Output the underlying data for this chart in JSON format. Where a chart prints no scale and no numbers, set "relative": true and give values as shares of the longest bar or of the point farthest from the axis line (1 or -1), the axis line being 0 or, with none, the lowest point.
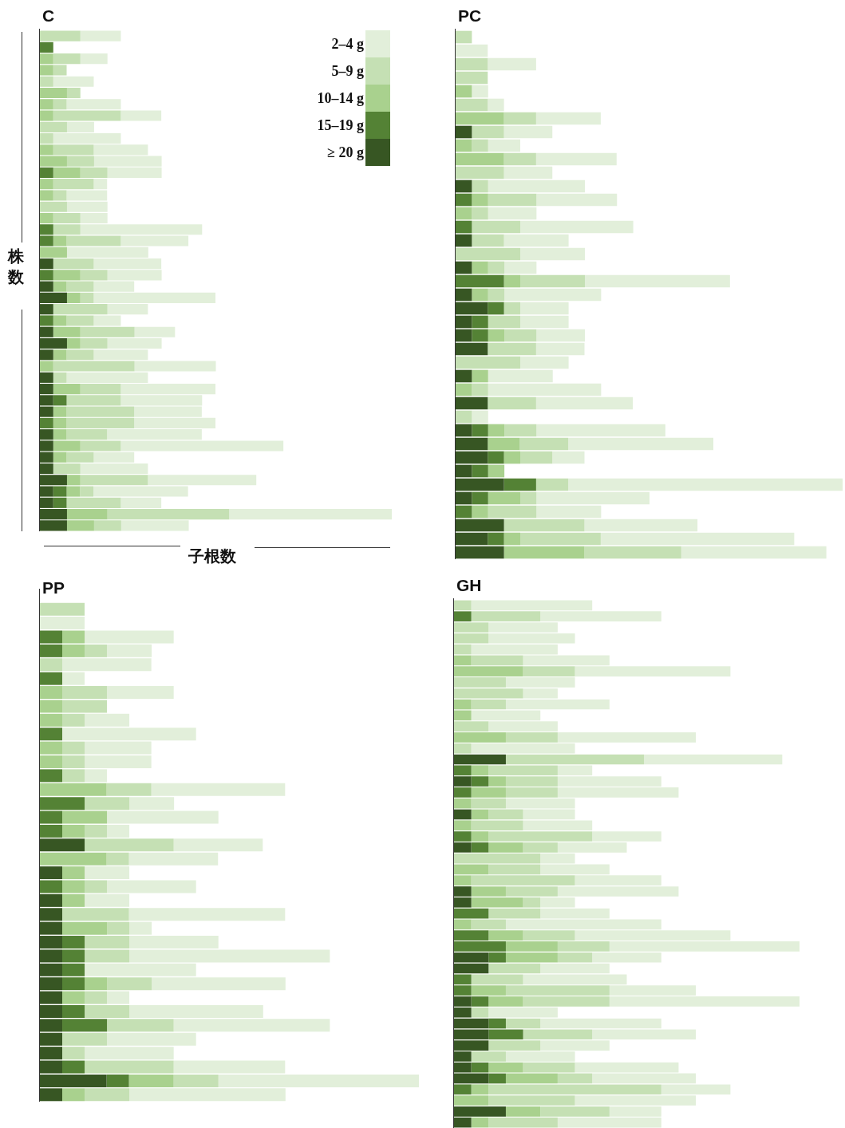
{
  "chart_data": [
    {
      "type": "bar",
      "orientation": "horizontal",
      "stacked": true,
      "relative": true,
      "tick_labels": false,
      "title": "C",
      "xlabel": "子根数",
      "ylabel": "株数",
      "legend": "top right",
      "categories": [
        null,
        null,
        null,
        null,
        null,
        null,
        null,
        null,
        null,
        null,
        null,
        null,
        null,
        null,
        null,
        null,
        null,
        null,
        null,
        null,
        null,
        null,
        null,
        null,
        null,
        null,
        null,
        null,
        null,
        null,
        null,
        null,
        null,
        null,
        null,
        null,
        null,
        null,
        null,
        null,
        null,
        null,
        null,
        null
      ],
      "series": [
        {
          "name": "≥ 20 g",
          "color": "#375623",
          "values": [
            0,
            0,
            0,
            0,
            0,
            0,
            0,
            0,
            0,
            0,
            0,
            0,
            0,
            0,
            0,
            0,
            0,
            0,
            0,
            0,
            0.038,
            0,
            0.038,
            0.077,
            0.038,
            0,
            0.038,
            0.077,
            0.038,
            0,
            0.038,
            0.038,
            0.038,
            0.038,
            0,
            0.038,
            0.038,
            0.038,
            0.038,
            0.077,
            0.038,
            0.038,
            0.077,
            0.077
          ]
        },
        {
          "name": "15–19 g",
          "color": "#548235",
          "values": [
            0,
            0.038,
            0,
            0,
            0,
            0,
            0,
            0,
            0,
            0,
            0,
            0,
            0.038,
            0,
            0,
            0,
            0,
            0.038,
            0.038,
            0,
            0,
            0.038,
            0,
            0,
            0,
            0.038,
            0,
            0,
            0,
            0,
            0,
            0,
            0.038,
            0,
            0.038,
            0,
            0,
            0,
            0,
            0,
            0.038,
            0.038,
            0,
            0
          ]
        },
        {
          "name": "10–14 g",
          "color": "#a9d18e",
          "values": [
            0,
            0,
            0.038,
            0.038,
            0,
            0.077,
            0.038,
            0.038,
            0,
            0,
            0.038,
            0.077,
            0.077,
            0.038,
            0.038,
            0,
            0.038,
            0,
            0.038,
            0.077,
            0,
            0.077,
            0.038,
            0.038,
            0,
            0.038,
            0.077,
            0.038,
            0.038,
            0.038,
            0,
            0.077,
            0,
            0.038,
            0.038,
            0.038,
            0.077,
            0.038,
            0,
            0.038,
            0.038,
            0,
            0.115,
            0.077
          ]
        },
        {
          "name": "5–9 g",
          "color": "#c5e0b4",
          "values": [
            0.115,
            0,
            0.077,
            0.038,
            0.038,
            0.038,
            0.038,
            0.192,
            0.077,
            0.038,
            0.115,
            0.077,
            0.077,
            0.115,
            0.038,
            0.077,
            0.077,
            0.077,
            0.154,
            0,
            0.115,
            0.077,
            0.077,
            0.038,
            0.154,
            0.077,
            0.154,
            0.077,
            0.077,
            0.231,
            0.038,
            0.115,
            0.154,
            0.192,
            0.192,
            0.115,
            0.115,
            0.077,
            0.077,
            0.192,
            0.038,
            0.154,
            0.346,
            0.077
          ]
        },
        {
          "name": "2–4 g",
          "color": "#e2efda",
          "values": [
            0.115,
            0,
            0.077,
            0,
            0.115,
            0,
            0.154,
            0.115,
            0.077,
            0.192,
            0.154,
            0.192,
            0.154,
            0.038,
            0.115,
            0.115,
            0.077,
            0.346,
            0.192,
            0.231,
            0.192,
            0.154,
            0.115,
            0.346,
            0.115,
            0.077,
            0.115,
            0.154,
            0.154,
            0.231,
            0.231,
            0.269,
            0.231,
            0.192,
            0.231,
            0.269,
            0.462,
            0.115,
            0.192,
            0.308,
            0.269,
            0.115,
            0.462,
            0.192
          ]
        }
      ]
    },
    {
      "type": "bar",
      "orientation": "horizontal",
      "stacked": true,
      "relative": true,
      "tick_labels": false,
      "title": "PC",
      "categories": [
        null,
        null,
        null,
        null,
        null,
        null,
        null,
        null,
        null,
        null,
        null,
        null,
        null,
        null,
        null,
        null,
        null,
        null,
        null,
        null,
        null,
        null,
        null,
        null,
        null,
        null,
        null,
        null,
        null,
        null,
        null,
        null,
        null,
        null,
        null,
        null,
        null,
        null,
        null
      ],
      "series": [
        {
          "color": "#375623",
          "values": [
            0,
            0,
            0,
            0,
            0,
            0,
            0,
            0.042,
            0,
            0,
            0,
            0.042,
            0,
            0,
            0,
            0.042,
            0,
            0.042,
            0,
            0.042,
            0.083,
            0.042,
            0.042,
            0.083,
            0,
            0.042,
            0,
            0.083,
            0,
            0.042,
            0.083,
            0.083,
            0.042,
            0.125,
            0.042,
            0,
            0.125,
            0.083,
            0.125
          ]
        },
        {
          "color": "#548235",
          "values": [
            0,
            0,
            0,
            0,
            0,
            0,
            0,
            0,
            0,
            0,
            0,
            0,
            0.042,
            0,
            0.042,
            0,
            0,
            0,
            0.125,
            0,
            0.042,
            0.042,
            0.042,
            0,
            0,
            0,
            0,
            0,
            0,
            0.042,
            0,
            0.042,
            0.042,
            0.083,
            0.042,
            0.042,
            0,
            0.042,
            0
          ]
        },
        {
          "color": "#a9d18e",
          "values": [
            0,
            0,
            0,
            0,
            0.042,
            0,
            0.125,
            0,
            0.042,
            0.125,
            0,
            0,
            0.042,
            0.042,
            0,
            0,
            0,
            0.042,
            0.042,
            0.042,
            0,
            0,
            0.042,
            0,
            0,
            0.042,
            0.042,
            0,
            0,
            0.042,
            0.083,
            0.042,
            0.042,
            0,
            0.083,
            0.042,
            0,
            0.042,
            0.208
          ]
        },
        {
          "color": "#c5e0b4",
          "values": [
            0.042,
            0,
            0.083,
            0.083,
            0,
            0.083,
            0.083,
            0.083,
            0.042,
            0.083,
            0.125,
            0.042,
            0.125,
            0.042,
            0.125,
            0.083,
            0.167,
            0.042,
            0.167,
            0.042,
            0.042,
            0.083,
            0.083,
            0.125,
            0.167,
            0,
            0.042,
            0.125,
            0.042,
            0.083,
            0.125,
            0.083,
            0,
            0.083,
            0.042,
            0.125,
            0.208,
            0.208,
            0.25
          ]
        },
        {
          "color": "#e2efda",
          "values": [
            0,
            0.083,
            0.125,
            0,
            0.042,
            0.042,
            0.167,
            0.125,
            0.083,
            0.208,
            0.125,
            0.25,
            0.208,
            0.125,
            0.292,
            0.167,
            0.167,
            0.083,
            0.375,
            0.25,
            0.125,
            0.125,
            0.125,
            0.125,
            0.125,
            0.167,
            0.292,
            0.25,
            0.042,
            0.333,
            0.375,
            0.083,
            0,
            0.709,
            0.292,
            0.167,
            0.292,
            0.5,
            0.375
          ]
        }
      ]
    },
    {
      "type": "bar",
      "orientation": "horizontal",
      "stacked": true,
      "relative": true,
      "tick_labels": false,
      "title": "PP",
      "categories": [
        null,
        null,
        null,
        null,
        null,
        null,
        null,
        null,
        null,
        null,
        null,
        null,
        null,
        null,
        null,
        null,
        null,
        null,
        null,
        null,
        null,
        null,
        null,
        null,
        null,
        null,
        null,
        null,
        null,
        null,
        null,
        null,
        null,
        null,
        null,
        null
      ],
      "series": [
        {
          "color": "#375623",
          "values": [
            0,
            0,
            0,
            0,
            0,
            0,
            0,
            0,
            0,
            0,
            0,
            0,
            0,
            0,
            0,
            0,
            0,
            0.118,
            0,
            0.059,
            0,
            0.059,
            0.059,
            0.059,
            0.059,
            0.059,
            0.059,
            0.059,
            0.059,
            0.059,
            0.059,
            0.059,
            0.059,
            0.059,
            0.176,
            0.059
          ]
        },
        {
          "color": "#548235",
          "values": [
            0,
            0,
            0.059,
            0.059,
            0,
            0.059,
            0,
            0,
            0,
            0.059,
            0,
            0,
            0.059,
            0,
            0.118,
            0.059,
            0.059,
            0,
            0,
            0,
            0.059,
            0,
            0,
            0,
            0.059,
            0.059,
            0.059,
            0.059,
            0,
            0.059,
            0.118,
            0,
            0,
            0.059,
            0.059,
            0
          ]
        },
        {
          "color": "#a9d18e",
          "values": [
            0,
            0,
            0.059,
            0.059,
            0,
            0,
            0.059,
            0.059,
            0.059,
            0,
            0.059,
            0.059,
            0,
            0.176,
            0,
            0.118,
            0.059,
            0,
            0.176,
            0.059,
            0.059,
            0.059,
            0,
            0.118,
            0,
            0,
            0,
            0.059,
            0.059,
            0,
            0,
            0,
            0,
            0,
            0.118,
            0.059
          ]
        },
        {
          "color": "#c5e0b4",
          "values": [
            0.118,
            0,
            0,
            0.059,
            0.059,
            0,
            0.118,
            0.118,
            0.059,
            0,
            0.059,
            0.059,
            0.059,
            0.118,
            0.118,
            0,
            0.059,
            0.235,
            0.059,
            0,
            0.059,
            0,
            0.176,
            0.059,
            0.118,
            0.118,
            0,
            0.118,
            0.059,
            0.118,
            0.176,
            0.118,
            0.059,
            0.235,
            0.118,
            0.118
          ]
        },
        {
          "color": "#e2efda",
          "values": [
            0,
            0.118,
            0.235,
            0.118,
            0.235,
            0.059,
            0.176,
            0,
            0.118,
            0.353,
            0.176,
            0.176,
            0.059,
            0.353,
            0.118,
            0.294,
            0.059,
            0.235,
            0.235,
            0.118,
            0.235,
            0.118,
            0.412,
            0.059,
            0.235,
            0.529,
            0.294,
            0.353,
            0.059,
            0.353,
            0.412,
            0.235,
            0.235,
            0.294,
            0.529,
            0.412
          ]
        }
      ]
    },
    {
      "type": "bar",
      "orientation": "horizontal",
      "stacked": true,
      "relative": true,
      "tick_labels": false,
      "title": "GH",
      "categories": [
        null,
        null,
        null,
        null,
        null,
        null,
        null,
        null,
        null,
        null,
        null,
        null,
        null,
        null,
        null,
        null,
        null,
        null,
        null,
        null,
        null,
        null,
        null,
        null,
        null,
        null,
        null,
        null,
        null,
        null,
        null,
        null,
        null,
        null,
        null,
        null,
        null,
        null,
        null,
        null,
        null,
        null,
        null,
        null,
        null,
        null,
        null,
        null
      ],
      "series": [
        {
          "color": "#375623",
          "values": [
            0,
            0,
            0,
            0,
            0,
            0,
            0,
            0,
            0,
            0,
            0,
            0,
            0,
            0,
            0.15,
            0,
            0.05,
            0,
            0,
            0.05,
            0,
            0,
            0.05,
            0,
            0,
            0,
            0.05,
            0.05,
            0,
            0,
            0,
            0,
            0.1,
            0.1,
            0,
            0,
            0.05,
            0.05,
            0.1,
            0.1,
            0.1,
            0.05,
            0.05,
            0.1,
            0,
            0,
            0.15,
            0.05
          ]
        },
        {
          "color": "#548235",
          "values": [
            0,
            0.05,
            0,
            0,
            0,
            0,
            0,
            0,
            0,
            0,
            0,
            0,
            0,
            0,
            0,
            0.05,
            0.05,
            0.05,
            0,
            0,
            0,
            0.05,
            0.05,
            0,
            0,
            0,
            0,
            0,
            0.1,
            0,
            0.1,
            0.15,
            0.05,
            0,
            0.05,
            0.05,
            0.05,
            0,
            0.05,
            0.1,
            0,
            0,
            0.05,
            0.05,
            0.05,
            0,
            0,
            0
          ]
        },
        {
          "color": "#a9d18e",
          "values": [
            0,
            0,
            0,
            0,
            0,
            0.05,
            0.2,
            0,
            0,
            0.05,
            0.05,
            0,
            0.15,
            0,
            0,
            0.05,
            0.05,
            0.1,
            0.05,
            0.05,
            0.05,
            0.05,
            0.1,
            0,
            0.1,
            0.05,
            0.1,
            0.15,
            0,
            0.05,
            0.1,
            0.15,
            0.15,
            0,
            0,
            0.1,
            0.1,
            0,
            0,
            0,
            0,
            0,
            0.1,
            0.15,
            0.05,
            0.1,
            0.1,
            0.05
          ]
        },
        {
          "color": "#c5e0b4",
          "values": [
            0.05,
            0.2,
            0.1,
            0.1,
            0.05,
            0.15,
            0.15,
            0.15,
            0.2,
            0.1,
            0,
            0.1,
            0.15,
            0.05,
            0.4,
            0.2,
            0.15,
            0.15,
            0.1,
            0.1,
            0.15,
            0.3,
            0.1,
            0.25,
            0.15,
            0.3,
            0.15,
            0.05,
            0.15,
            0.1,
            0.15,
            0.15,
            0.1,
            0.15,
            0.15,
            0.3,
            0.25,
            0.05,
            0.1,
            0.2,
            0.15,
            0.1,
            0.15,
            0.1,
            0.5,
            0.25,
            0.2,
            0.2
          ]
        },
        {
          "color": "#e2efda",
          "values": [
            0.35,
            0.35,
            0.2,
            0.25,
            0.25,
            0.25,
            0.45,
            0.2,
            0.1,
            0.3,
            0.2,
            0.2,
            0.4,
            0.3,
            0.4,
            0.1,
            0.3,
            0.35,
            0.2,
            0.15,
            0.2,
            0.2,
            0.2,
            0.1,
            0.2,
            0.25,
            0.35,
            0.1,
            0.2,
            0.45,
            0.45,
            0.55,
            0.2,
            0.2,
            0.3,
            0.25,
            0.55,
            0.2,
            0.35,
            0.3,
            0.2,
            0.2,
            0.3,
            0.3,
            0.2,
            0.35,
            0.15,
            0.3
          ]
        }
      ]
    }
  ]
}
